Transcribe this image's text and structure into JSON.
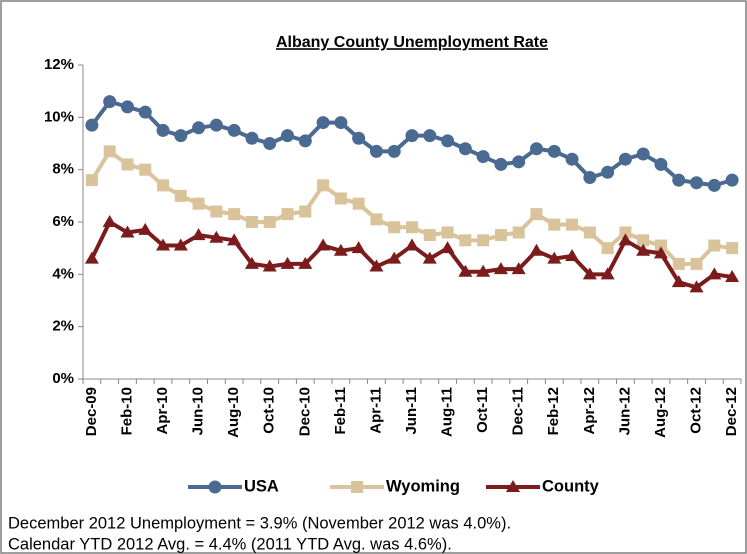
{
  "chart_data": {
    "type": "line",
    "title": "Albany County Unemployment Rate",
    "categories": [
      "Dec-09",
      null,
      "Feb-10",
      null,
      "Apr-10",
      null,
      "Jun-10",
      null,
      "Aug-10",
      null,
      "Oct-10",
      null,
      "Dec-10",
      null,
      "Feb-11",
      null,
      "Apr-11",
      null,
      "Jun-11",
      null,
      "Aug-11",
      null,
      "Oct-11",
      null,
      "Dec-11",
      null,
      "Feb-12",
      null,
      "Apr-12",
      null,
      "Jun-12",
      null,
      "Aug-12",
      null,
      "Oct-12",
      null,
      "Dec-12"
    ],
    "series": [
      {
        "name": "USA",
        "color": "#4a6a91",
        "marker": "circle",
        "values": [
          9.7,
          10.6,
          10.4,
          10.2,
          9.5,
          9.3,
          9.6,
          9.7,
          9.5,
          9.2,
          9.0,
          9.3,
          9.1,
          9.8,
          9.8,
          9.2,
          8.7,
          8.7,
          9.3,
          9.3,
          9.1,
          8.8,
          8.5,
          8.2,
          8.3,
          8.8,
          8.7,
          8.4,
          7.7,
          7.9,
          8.4,
          8.6,
          8.2,
          7.6,
          7.5,
          7.4,
          7.6
        ]
      },
      {
        "name": "Wyoming",
        "color": "#d9c39a",
        "marker": "square",
        "values": [
          7.6,
          8.7,
          8.2,
          8.0,
          7.4,
          7.0,
          6.7,
          6.4,
          6.3,
          6.0,
          6.0,
          6.3,
          6.4,
          7.4,
          6.9,
          6.7,
          6.1,
          5.8,
          5.8,
          5.5,
          5.6,
          5.3,
          5.3,
          5.5,
          5.6,
          6.3,
          5.9,
          5.9,
          5.6,
          5.0,
          5.6,
          5.3,
          5.1,
          4.4,
          4.4,
          5.1,
          5.0
        ]
      },
      {
        "name": "County",
        "color": "#7b1b1b",
        "marker": "triangle",
        "values": [
          4.6,
          6.0,
          5.6,
          5.7,
          5.1,
          5.1,
          5.5,
          5.4,
          5.3,
          4.4,
          4.3,
          4.4,
          4.4,
          5.1,
          4.9,
          5.0,
          4.3,
          4.6,
          5.1,
          4.6,
          5.0,
          4.1,
          4.1,
          4.2,
          4.2,
          4.9,
          4.6,
          4.7,
          4.0,
          4.0,
          5.3,
          4.9,
          4.8,
          3.7,
          3.5,
          4.0,
          3.9
        ]
      }
    ],
    "ylim": [
      0,
      12
    ],
    "yticks": [
      {
        "value": 0,
        "label": "0%"
      },
      {
        "value": 2,
        "label": "2%"
      },
      {
        "value": 4,
        "label": "4%"
      },
      {
        "value": 6,
        "label": "6%"
      },
      {
        "value": 8,
        "label": "8%"
      },
      {
        "value": 10,
        "label": "10%"
      },
      {
        "value": 12,
        "label": "12%"
      }
    ],
    "grid": false,
    "legend": "bottom",
    "notes": [
      "December 2012 Unemployment = 3.9% (November 2012 was 4.0%).",
      "Calendar YTD 2012 Avg. = 4.4% (2011 YTD Avg. was 4.6%)."
    ]
  }
}
